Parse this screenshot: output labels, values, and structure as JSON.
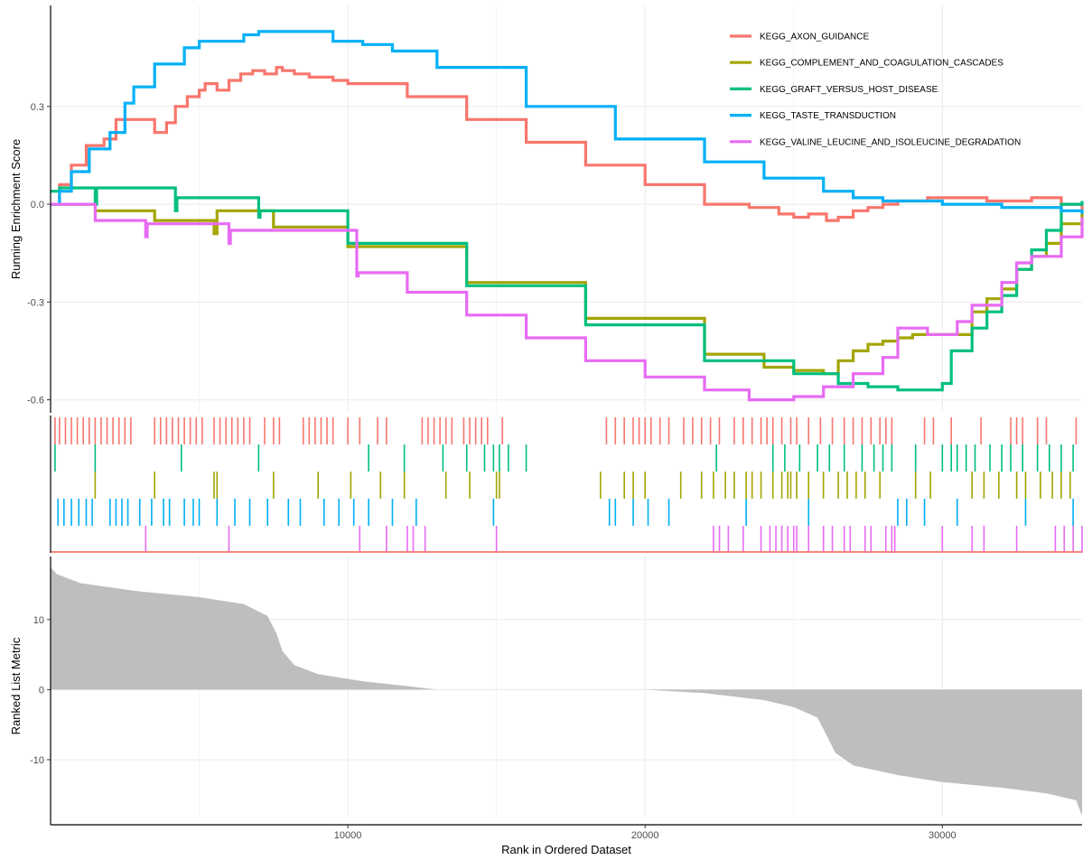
{
  "chart_data": {
    "type": "line",
    "x_range": [
      0,
      34700
    ],
    "xlabel": "Rank in Ordered Dataset",
    "x_ticks": [
      10000,
      20000,
      30000
    ],
    "x_tick_labels": [
      "10000",
      "20000",
      "30000"
    ],
    "legend_position": "top-right",
    "panels": {
      "enrichment": {
        "ylabel": "Running Enrichment Score",
        "ylim": [
          -0.64,
          0.61
        ],
        "y_ticks": [
          0.3,
          0.0,
          -0.3,
          -0.6
        ],
        "y_tick_labels": [
          "0.3",
          "0.0",
          "-0.3",
          "-0.6"
        ],
        "grid": true
      },
      "ranked_metric": {
        "ylabel": "Ranked List Metric",
        "ylim": [
          -18.0,
          19.0
        ],
        "y_ticks": [
          10,
          0,
          -10
        ],
        "y_tick_labels": [
          "10",
          "0",
          "-10"
        ],
        "grid": true,
        "profile_x": [
          0,
          200,
          1000,
          3000,
          5000,
          6500,
          7300,
          7600,
          7800,
          8200,
          9000,
          10500,
          12000,
          13000,
          20000,
          22000,
          24000,
          25000,
          25800,
          26100,
          26400,
          27000,
          28500,
          30000,
          32000,
          33500,
          34500,
          34700
        ],
        "profile_y": [
          17.5,
          16.5,
          15.2,
          14.0,
          13.2,
          12.2,
          10.5,
          8.0,
          5.5,
          3.5,
          2.2,
          1.2,
          0.5,
          0.0,
          0.0,
          -0.5,
          -1.5,
          -2.5,
          -4.0,
          -6.5,
          -9.0,
          -10.8,
          -12.2,
          -13.2,
          -14.0,
          -14.8,
          -15.8,
          -18.0
        ],
        "fill_color": "#bebebe"
      }
    },
    "series": [
      {
        "name": "KEGG_AXON_GUIDANCE",
        "color": "#F8766D",
        "x": [
          0,
          300,
          700,
          1200,
          1800,
          2200,
          3500,
          3900,
          4200,
          4600,
          5000,
          5200,
          5600,
          6000,
          6400,
          6800,
          7200,
          7600,
          7800,
          8200,
          8700,
          9500,
          10000,
          12000,
          14000,
          16000,
          18000,
          20000,
          22000,
          23500,
          24500,
          25000,
          25500,
          26100,
          26500,
          27000,
          27500,
          28000,
          28500,
          29500,
          30500,
          31500,
          32500,
          33000,
          34000,
          34700
        ],
        "y": [
          0.0,
          0.06,
          0.12,
          0.18,
          0.2,
          0.26,
          0.22,
          0.25,
          0.3,
          0.33,
          0.35,
          0.37,
          0.35,
          0.38,
          0.4,
          0.41,
          0.4,
          0.42,
          0.41,
          0.4,
          0.39,
          0.38,
          0.37,
          0.33,
          0.26,
          0.19,
          0.12,
          0.06,
          0.0,
          -0.01,
          -0.03,
          -0.04,
          -0.03,
          -0.05,
          -0.04,
          -0.02,
          -0.01,
          0.0,
          0.01,
          0.02,
          0.02,
          0.01,
          0.01,
          0.02,
          0.0,
          -0.02
        ]
      },
      {
        "name": "KEGG_COMPLEMENT_AND_COAGULATION_CASCADES",
        "color": "#A3A500",
        "x": [
          0,
          1500,
          3500,
          5500,
          5600,
          7500,
          10000,
          14000,
          18000,
          22000,
          24000,
          25000,
          26000,
          26500,
          27000,
          27500,
          28000,
          28500,
          29000,
          30500,
          31000,
          31500,
          32000,
          32500,
          33000,
          33500,
          34000,
          34700
        ],
        "y": [
          0.0,
          -0.02,
          -0.05,
          -0.09,
          -0.02,
          -0.07,
          -0.13,
          -0.24,
          -0.35,
          -0.46,
          -0.5,
          -0.51,
          -0.52,
          -0.48,
          -0.45,
          -0.43,
          -0.42,
          -0.41,
          -0.4,
          -0.4,
          -0.33,
          -0.29,
          -0.26,
          -0.2,
          -0.16,
          -0.12,
          -0.06,
          -0.02
        ]
      },
      {
        "name": "KEGG_GRAFT_VERSUS_HOST_DISEASE",
        "color": "#00BF7D",
        "x": [
          0,
          300,
          1500,
          1550,
          4200,
          4250,
          7000,
          7050,
          10000,
          14000,
          18000,
          22000,
          25000,
          26500,
          27500,
          28500,
          29500,
          30000,
          30300,
          31000,
          31500,
          32000,
          32500,
          33000,
          33500,
          34000,
          34700
        ],
        "y": [
          0.04,
          0.05,
          0.0,
          0.05,
          -0.02,
          0.02,
          -0.04,
          -0.02,
          -0.12,
          -0.25,
          -0.37,
          -0.48,
          -0.52,
          -0.55,
          -0.56,
          -0.57,
          -0.57,
          -0.55,
          -0.45,
          -0.38,
          -0.33,
          -0.28,
          -0.2,
          -0.14,
          -0.08,
          0.0,
          0.01
        ]
      },
      {
        "name": "KEGG_TASTE_TRANSDUCTION",
        "color": "#00B0F6",
        "x": [
          0,
          300,
          700,
          1300,
          2000,
          2500,
          2800,
          3500,
          4500,
          5000,
          5500,
          6500,
          7000,
          7500,
          8500,
          9500,
          10500,
          11500,
          13000,
          16000,
          19000,
          22000,
          24000,
          26000,
          27000,
          28000,
          29000,
          30000,
          31000,
          32000,
          33000,
          34000,
          34700
        ],
        "y": [
          0.0,
          0.04,
          0.1,
          0.17,
          0.22,
          0.31,
          0.36,
          0.43,
          0.48,
          0.5,
          0.5,
          0.52,
          0.53,
          0.53,
          0.53,
          0.5,
          0.49,
          0.47,
          0.42,
          0.3,
          0.2,
          0.13,
          0.08,
          0.04,
          0.02,
          0.01,
          0.01,
          0.0,
          0.0,
          -0.01,
          -0.01,
          -0.02,
          -0.03
        ]
      },
      {
        "name": "KEGG_VALINE_LEUCINE_AND_ISOLEUCINE_DEGRADATION",
        "color": "#E76BF3",
        "x": [
          0,
          1500,
          3200,
          3250,
          6000,
          6050,
          10300,
          10350,
          12000,
          14000,
          16000,
          18000,
          20000,
          22000,
          23500,
          24000,
          25000,
          25500,
          26000,
          27000,
          28000,
          28500,
          29500,
          30500,
          31000,
          32000,
          32500,
          33000,
          34000,
          34700
        ],
        "y": [
          0.0,
          -0.05,
          -0.1,
          -0.06,
          -0.12,
          -0.08,
          -0.22,
          -0.21,
          -0.27,
          -0.34,
          -0.41,
          -0.48,
          -0.53,
          -0.57,
          -0.6,
          -0.6,
          -0.59,
          -0.59,
          -0.56,
          -0.52,
          -0.47,
          -0.38,
          -0.4,
          -0.36,
          -0.31,
          -0.24,
          -0.18,
          -0.16,
          -0.1,
          -0.04
        ]
      }
    ],
    "hit_rows": [
      {
        "name": "KEGG_AXON_GUIDANCE",
        "color": "#F8766D",
        "positions": [
          150,
          300,
          500,
          700,
          900,
          1100,
          1300,
          1500,
          1700,
          1900,
          2100,
          2300,
          2500,
          2700,
          3500,
          3700,
          3900,
          4100,
          4300,
          4500,
          4700,
          4900,
          5100,
          5500,
          5700,
          5900,
          6100,
          6300,
          6500,
          6700,
          7200,
          7500,
          7700,
          8500,
          8700,
          8900,
          9100,
          9300,
          9500,
          10000,
          10400,
          11000,
          11300,
          12500,
          12700,
          12900,
          13100,
          13300,
          13500,
          13900,
          14100,
          14300,
          14500,
          14700,
          15200,
          15200,
          18700,
          19000,
          19300,
          19600,
          19800,
          20000,
          20200,
          20500,
          20800,
          21300,
          21600,
          21900,
          22200,
          22500,
          23000,
          23300,
          23600,
          23900,
          24100,
          24300,
          24600,
          24900,
          25100,
          25500,
          25900,
          26300,
          26700,
          27000,
          27300,
          27600,
          27900,
          28100,
          28300,
          29400,
          29700,
          30300,
          31300,
          32300,
          32500,
          32700,
          33200,
          33500,
          34500
        ]
      },
      {
        "name": "KEGG_GRAFT_VERSUS_HOST_DISEASE",
        "color": "#00BF7D",
        "positions": [
          150,
          1500,
          4400,
          7000,
          10700,
          11900,
          13200,
          14000,
          14600,
          14900,
          15100,
          15400,
          16000,
          22400,
          24300,
          24700,
          25200,
          25800,
          26200,
          26700,
          27300,
          27700,
          28000,
          28300,
          29100,
          30000,
          30300,
          30500,
          30800,
          31100,
          31600,
          32000,
          32300,
          32700,
          33200,
          33600,
          34000,
          34400
        ]
      },
      {
        "name": "KEGG_COMPLEMENT_AND_COAGULATION_CASCADES",
        "color": "#A3A500",
        "positions": [
          1500,
          3500,
          5500,
          5600,
          7500,
          9000,
          10100,
          11100,
          11900,
          13300,
          14100,
          15000,
          15100,
          18500,
          19300,
          19600,
          20000,
          21200,
          21900,
          22300,
          22700,
          23000,
          23400,
          23600,
          23900,
          24300,
          24600,
          24800,
          24900,
          25100,
          25500,
          26000,
          26500,
          26800,
          27100,
          27400,
          27900,
          29100,
          29600,
          31000,
          31400,
          31900,
          32500,
          32800,
          33300,
          33700,
          34000,
          34300
        ]
      },
      {
        "name": "KEGG_TASTE_TRANSDUCTION",
        "color": "#00B0F6",
        "positions": [
          250,
          450,
          700,
          950,
          1200,
          1400,
          2000,
          2200,
          2400,
          2600,
          3000,
          3400,
          3800,
          4000,
          4500,
          4800,
          5000,
          5600,
          6200,
          6700,
          7300,
          8000,
          8400,
          9200,
          9700,
          10200,
          10700,
          11500,
          12300,
          14900,
          18800,
          19000,
          19600,
          20100,
          20800,
          23400,
          25500,
          28500,
          28800,
          29400,
          30500,
          32800,
          34400
        ]
      },
      {
        "name": "KEGG_VALINE_LEUCINE_AND_ISOLEUCINE_DEGRADATION",
        "color": "#E76BF3",
        "positions": [
          3200,
          6000,
          10400,
          11300,
          12000,
          12200,
          12600,
          15000,
          22300,
          22500,
          22800,
          23300,
          23900,
          24200,
          24400,
          24600,
          24800,
          25000,
          25100,
          25500,
          26000,
          26300,
          26700,
          26900,
          27400,
          27600,
          28100,
          28300,
          28400,
          30000,
          31000,
          31400,
          32500,
          33800,
          34100,
          34400,
          34700
        ]
      }
    ]
  }
}
